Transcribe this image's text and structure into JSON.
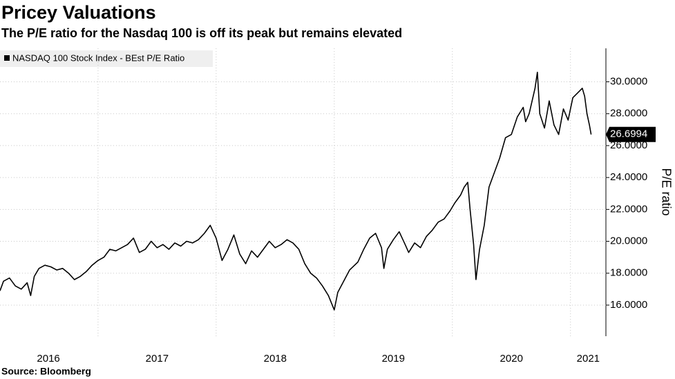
{
  "chart_data": {
    "type": "line",
    "title": "Pricey Valuations",
    "subtitle": "The P/E ratio for the Nasdaq 100 is off its peak but remains elevated",
    "y_label": "P/E ratio",
    "source": "Source: Bloomberg",
    "xlim": [
      2016.17,
      2021.3
    ],
    "xticks": [
      {
        "value": 2016.58,
        "label": "2016"
      },
      {
        "value": 2017.5,
        "label": "2017"
      },
      {
        "value": 2018.5,
        "label": "2018"
      },
      {
        "value": 2019.5,
        "label": "2019"
      },
      {
        "value": 2020.5,
        "label": "2020"
      },
      {
        "value": 2021.15,
        "label": "2021"
      }
    ],
    "xgrid": [
      2017,
      2018,
      2019,
      2020,
      2021
    ],
    "ylim": [
      14.05,
      32.1
    ],
    "yticks": [
      {
        "value": 16,
        "label": "16.0000"
      },
      {
        "value": 18,
        "label": "18.0000"
      },
      {
        "value": 20,
        "label": "20.0000"
      },
      {
        "value": 22,
        "label": "22.0000"
      },
      {
        "value": 24,
        "label": "24.0000"
      },
      {
        "value": 26,
        "label": "26.0000"
      },
      {
        "value": 28,
        "label": "28.0000"
      },
      {
        "value": 30,
        "label": "30.0000"
      }
    ],
    "grid": true,
    "legend": "top-left",
    "last_value": {
      "value": 26.6994,
      "label": "26.6994"
    },
    "x": [
      2016.17,
      2016.2,
      2016.25,
      2016.3,
      2016.35,
      2016.4,
      2016.43,
      2016.46,
      2016.5,
      2016.55,
      2016.6,
      2016.65,
      2016.7,
      2016.75,
      2016.8,
      2016.85,
      2016.9,
      2016.95,
      2017.0,
      2017.05,
      2017.1,
      2017.15,
      2017.2,
      2017.25,
      2017.3,
      2017.35,
      2017.4,
      2017.45,
      2017.5,
      2017.55,
      2017.6,
      2017.65,
      2017.7,
      2017.75,
      2017.8,
      2017.85,
      2017.9,
      2017.95,
      2018.0,
      2018.05,
      2018.1,
      2018.15,
      2018.2,
      2018.25,
      2018.3,
      2018.35,
      2018.4,
      2018.45,
      2018.5,
      2018.55,
      2018.6,
      2018.65,
      2018.7,
      2018.75,
      2018.8,
      2018.85,
      2018.9,
      2018.95,
      2019.0,
      2019.03,
      2019.08,
      2019.13,
      2019.2,
      2019.25,
      2019.3,
      2019.35,
      2019.4,
      2019.42,
      2019.45,
      2019.5,
      2019.55,
      2019.6,
      2019.63,
      2019.68,
      2019.73,
      2019.78,
      2019.83,
      2019.88,
      2019.93,
      2019.98,
      2020.02,
      2020.07,
      2020.1,
      2020.13,
      2020.15,
      2020.18,
      2020.2,
      2020.23,
      2020.27,
      2020.31,
      2020.35,
      2020.4,
      2020.45,
      2020.5,
      2020.55,
      2020.6,
      2020.62,
      2020.65,
      2020.7,
      2020.72,
      2020.74,
      2020.78,
      2020.82,
      2020.86,
      2020.9,
      2020.94,
      2020.98,
      2021.02,
      2021.06,
      2021.1,
      2021.12,
      2021.14,
      2021.16,
      2021.175
    ],
    "series": [
      {
        "name": "NASDAQ 100 Stock Index - BEst P/E Ratio",
        "color": "#000000",
        "values": [
          16.9,
          17.5,
          17.7,
          17.2,
          17.0,
          17.4,
          16.6,
          17.8,
          18.3,
          18.5,
          18.4,
          18.2,
          18.3,
          18.0,
          17.6,
          17.8,
          18.1,
          18.5,
          18.8,
          19.0,
          19.5,
          19.4,
          19.6,
          19.8,
          20.2,
          19.3,
          19.5,
          20.0,
          19.6,
          19.8,
          19.5,
          19.9,
          19.7,
          20.0,
          19.9,
          20.1,
          20.5,
          21.0,
          20.2,
          18.8,
          19.5,
          20.4,
          19.2,
          18.6,
          19.4,
          19.0,
          19.5,
          20.0,
          19.6,
          19.8,
          20.1,
          19.9,
          19.5,
          18.6,
          18.0,
          17.7,
          17.2,
          16.6,
          15.7,
          16.8,
          17.5,
          18.2,
          18.7,
          19.5,
          20.2,
          20.5,
          19.6,
          18.3,
          19.5,
          20.1,
          20.6,
          19.8,
          19.3,
          19.9,
          19.6,
          20.3,
          20.7,
          21.2,
          21.4,
          21.9,
          22.4,
          22.9,
          23.4,
          23.7,
          22.0,
          19.8,
          17.6,
          19.5,
          21.0,
          23.4,
          24.2,
          25.2,
          26.5,
          26.7,
          27.8,
          28.4,
          27.5,
          28.0,
          29.6,
          30.6,
          28.0,
          27.1,
          28.8,
          27.3,
          26.7,
          28.3,
          27.6,
          29.0,
          29.3,
          29.6,
          29.1,
          28.0,
          27.3,
          26.6994
        ]
      }
    ]
  }
}
